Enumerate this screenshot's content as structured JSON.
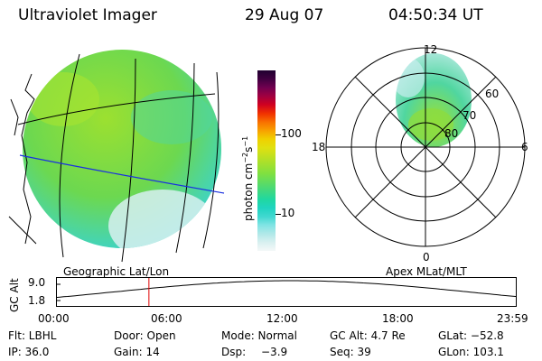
{
  "header": {
    "instrument": "Ultraviolet Imager",
    "date": "29 Aug 07",
    "time": "04:50:34 UT"
  },
  "colorbar": {
    "unit_label": "photon cm",
    "unit_exp1": "−2",
    "unit_mid": "s",
    "unit_exp2": "−1",
    "ticks": [
      "100",
      "10"
    ],
    "palette": [
      "#f4f8f8",
      "#d8f0f0",
      "#b0e8e8",
      "#80e4e4",
      "#40d8d0",
      "#20d4c0",
      "#20d8a0",
      "#40d880",
      "#60dc60",
      "#80e040",
      "#a0e030",
      "#c0e020",
      "#e0e010",
      "#f0d000",
      "#f8a000",
      "#f87000",
      "#f03000",
      "#d00020",
      "#a00040",
      "#700050",
      "#400040",
      "#200030"
    ]
  },
  "left_panel": {
    "title": "Geographic Lat/Lon"
  },
  "right_panel": {
    "title": "Apex MLat/MLT",
    "mlt_labels": {
      "top": "12",
      "bottom": "0",
      "left": "18",
      "right": "6"
    },
    "mlat_labels": [
      "60",
      "70",
      "80"
    ]
  },
  "altitude_plot": {
    "ylabel": "GC Alt",
    "yticks": [
      "9.0",
      "1.8"
    ],
    "xticks": [
      "00:00",
      "06:00",
      "12:00",
      "18:00",
      "23:59"
    ],
    "current_time_hours": 4.84,
    "marker_color": "#e00000"
  },
  "info": {
    "filter": "Flt: LBHL",
    "door": "Door: Open",
    "mode": "Mode: Normal",
    "gc_alt": "GC Alt: 4.7 Re",
    "glat": "GLat: −52.8",
    "ip": "IP: 36.0",
    "gain": "Gain: 14",
    "dsp_label": "Dsp:",
    "dsp_value": "−3.9",
    "seq": "Seq: 39",
    "glon": "GLon: 103.1"
  }
}
